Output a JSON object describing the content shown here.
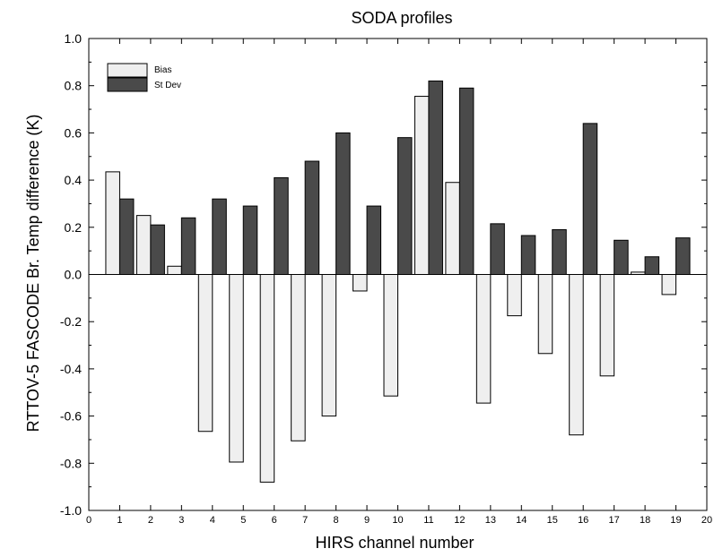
{
  "chart_data": {
    "type": "bar",
    "title": "SODA profiles",
    "xlabel": "HIRS channel number",
    "ylabel": "RTTOV-5 FASCODE  Br. Temp  difference (K)",
    "xlim": [
      0,
      20
    ],
    "ylim": [
      -1.0,
      1.0
    ],
    "x_ticks": [
      0,
      1,
      2,
      3,
      4,
      5,
      6,
      7,
      8,
      9,
      10,
      11,
      12,
      13,
      14,
      15,
      16,
      17,
      18,
      19,
      20
    ],
    "x_tick_labels": [
      "0",
      "1",
      "2",
      "3",
      "4",
      "5",
      "6",
      "7",
      "8",
      "9",
      "10",
      "11",
      "12",
      "13",
      "14",
      "15",
      "16",
      "17",
      "18",
      "19",
      "20"
    ],
    "y_ticks": [
      -1.0,
      -0.8,
      -0.6,
      -0.4,
      -0.2,
      0.0,
      0.2,
      0.4,
      0.6,
      0.8,
      1.0
    ],
    "y_tick_labels": [
      "-1.0",
      "-0.8",
      "-0.6",
      "-0.4",
      "-0.2",
      "0.0",
      "0.2",
      "0.4",
      "0.6",
      "0.8",
      "1.0"
    ],
    "categories": [
      1,
      2,
      3,
      4,
      5,
      6,
      7,
      8,
      9,
      10,
      11,
      12,
      13,
      14,
      15,
      16,
      17,
      18,
      19
    ],
    "series": [
      {
        "name": "Bias",
        "color": "#efefef",
        "values": [
          0.435,
          0.25,
          0.035,
          -0.665,
          -0.795,
          -0.88,
          -0.705,
          -0.6,
          -0.07,
          -0.515,
          0.755,
          0.39,
          -0.545,
          -0.175,
          -0.335,
          -0.68,
          -0.43,
          0.01,
          -0.085
        ]
      },
      {
        "name": "St Dev",
        "color": "#4a4a4a",
        "values": [
          0.32,
          0.21,
          0.24,
          0.32,
          0.29,
          0.41,
          0.48,
          0.6,
          0.29,
          0.58,
          0.82,
          0.79,
          0.215,
          0.165,
          0.19,
          0.64,
          0.145,
          0.075,
          0.155
        ]
      }
    ],
    "legend_position": "top-left",
    "grid": false
  }
}
